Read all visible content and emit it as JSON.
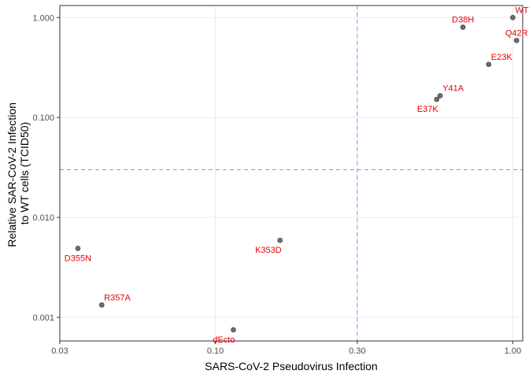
{
  "chart_data": {
    "type": "scatter",
    "xlabel": "SARS-CoV-2 Pseudovirus Infection",
    "ylabel": [
      "Relative SAR-CoV-2 Infection",
      "to WT cells (TCID50)"
    ],
    "x_scale": "log",
    "y_scale": "log",
    "xlim": [
      0.03,
      1.08
    ],
    "ylim": [
      0.00058,
      1.32
    ],
    "x_ticks": [
      {
        "value": 0.03,
        "label": "0.03"
      },
      {
        "value": 0.1,
        "label": "0.10"
      },
      {
        "value": 0.3,
        "label": "0.30"
      },
      {
        "value": 1.0,
        "label": "1.00"
      }
    ],
    "y_ticks": [
      {
        "value": 0.001,
        "label": "0.001"
      },
      {
        "value": 0.01,
        "label": "0.010"
      },
      {
        "value": 0.1,
        "label": "0.100"
      },
      {
        "value": 1.0,
        "label": "1.000"
      }
    ],
    "reference_lines": {
      "x": 0.3,
      "y": 0.03
    },
    "grid": true,
    "colors": {
      "point": "#555555",
      "label": "#e8000b",
      "reference": "#8f8fff",
      "grid": "#ebebeb"
    },
    "points": [
      {
        "label": "WT",
        "x": 1.0,
        "y": 1.0,
        "anchor": "above-right"
      },
      {
        "label": "D38H",
        "x": 0.68,
        "y": 0.8,
        "anchor": "above"
      },
      {
        "label": "Q42R",
        "x": 1.03,
        "y": 0.59,
        "anchor": "above"
      },
      {
        "label": "E23K",
        "x": 0.83,
        "y": 0.34,
        "anchor": "above-right"
      },
      {
        "label": "Y41A",
        "x": 0.57,
        "y": 0.165,
        "anchor": "above-right"
      },
      {
        "label": "E37K",
        "x": 0.555,
        "y": 0.152,
        "anchor": "below-left"
      },
      {
        "label": "K353D",
        "x": 0.165,
        "y": 0.0059,
        "anchor": "below-left"
      },
      {
        "label": "D355N",
        "x": 0.0345,
        "y": 0.0049,
        "anchor": "below"
      },
      {
        "label": "R357A",
        "x": 0.0415,
        "y": 0.00133,
        "anchor": "above-right"
      },
      {
        "label": "dEcto",
        "x": 0.115,
        "y": 0.00075,
        "anchor": "below-left"
      }
    ]
  }
}
